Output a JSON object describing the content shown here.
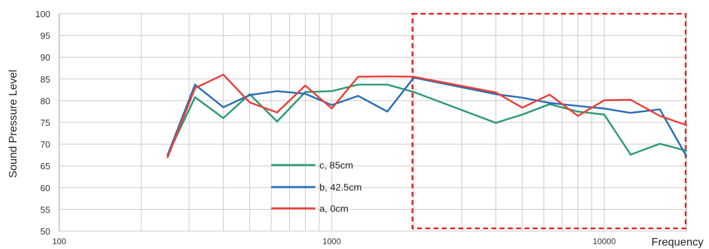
{
  "chart_data": {
    "type": "line",
    "title": "",
    "xlabel": "Frequency",
    "ylabel": "Sound Pressure Level",
    "x_scale": "log",
    "xlim": [
      100,
      20000
    ],
    "ylim": [
      50,
      100
    ],
    "y_ticks": [
      50,
      55,
      60,
      65,
      70,
      75,
      80,
      85,
      90,
      95,
      100
    ],
    "x_tick_labels": [
      {
        "value": 100,
        "label": "100"
      },
      {
        "value": 1000,
        "label": "1000"
      },
      {
        "value": 10000,
        "label": "10000"
      }
    ],
    "grid": true,
    "legend_position": "center-left",
    "series": [
      {
        "name": "c, 85cm",
        "color": "#2e9a77",
        "points": [
          [
            250,
            67.5
          ],
          [
            315,
            80.8
          ],
          [
            400,
            76.0
          ],
          [
            500,
            81.5
          ],
          [
            630,
            75.2
          ],
          [
            800,
            82.0
          ],
          [
            1000,
            82.2
          ],
          [
            1250,
            83.7
          ],
          [
            1600,
            83.7
          ],
          [
            2000,
            82.0
          ],
          [
            4000,
            74.9
          ],
          [
            5000,
            76.8
          ],
          [
            6300,
            79.2
          ],
          [
            8000,
            77.5
          ],
          [
            10000,
            76.8
          ],
          [
            12500,
            67.6
          ],
          [
            16000,
            70.1
          ],
          [
            20000,
            68.5
          ]
        ]
      },
      {
        "name": "b, 42.5cm",
        "color": "#2a6db5",
        "points": [
          [
            250,
            67.5
          ],
          [
            315,
            83.7
          ],
          [
            400,
            78.5
          ],
          [
            500,
            81.3
          ],
          [
            630,
            82.2
          ],
          [
            800,
            81.6
          ],
          [
            1000,
            79.0
          ],
          [
            1250,
            81.1
          ],
          [
            1600,
            77.5
          ],
          [
            2000,
            85.3
          ],
          [
            4000,
            81.5
          ],
          [
            5000,
            80.7
          ],
          [
            6300,
            79.5
          ],
          [
            8000,
            78.8
          ],
          [
            10000,
            78.2
          ],
          [
            12500,
            77.2
          ],
          [
            16000,
            78.0
          ],
          [
            20000,
            67.3
          ]
        ]
      },
      {
        "name": "a, 0cm",
        "color": "#e8413a",
        "points": [
          [
            250,
            67.0
          ],
          [
            315,
            82.9
          ],
          [
            400,
            86.0
          ],
          [
            500,
            79.6
          ],
          [
            630,
            77.3
          ],
          [
            800,
            83.5
          ],
          [
            1000,
            78.2
          ],
          [
            1250,
            85.5
          ],
          [
            1600,
            85.6
          ],
          [
            2000,
            85.5
          ],
          [
            4000,
            81.9
          ],
          [
            5000,
            78.4
          ],
          [
            6300,
            81.4
          ],
          [
            8000,
            76.5
          ],
          [
            10000,
            80.1
          ],
          [
            12500,
            80.2
          ],
          [
            16000,
            76.5
          ],
          [
            20000,
            74.4
          ]
        ]
      }
    ],
    "highlight_region": {
      "x_range": [
        2000,
        20000
      ],
      "y_range": [
        50,
        100
      ],
      "style": "red-dashed-box"
    }
  }
}
